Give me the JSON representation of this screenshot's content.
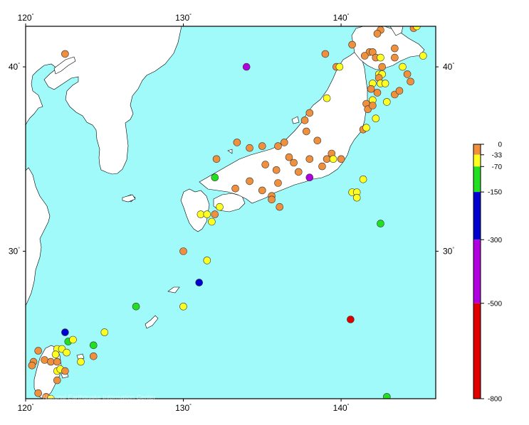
{
  "map": {
    "lon_range": [
      120,
      146
    ],
    "lat_range": [
      22,
      42.2
    ],
    "lon_ticks": [
      {
        "value": 120,
        "label": "120"
      },
      {
        "value": 130,
        "label": "130"
      },
      {
        "value": 140,
        "label": "140"
      }
    ],
    "lat_ticks": [
      {
        "value": 40,
        "label": "40"
      },
      {
        "value": 30,
        "label": "30"
      }
    ],
    "degree_symbol": "°",
    "ocean_color": "#a0fafa",
    "land_color": "#ffffff",
    "credit_text": "National Earthquake Information Center"
  },
  "depth_scale": {
    "range": [
      0,
      800
    ],
    "labels": [
      "0",
      "-33",
      "-70",
      "-150",
      "-300",
      "-500",
      "-800"
    ],
    "bands": [
      {
        "from": 0,
        "to": 33,
        "color": "#f0903c"
      },
      {
        "from": 33,
        "to": 70,
        "color": "#ffff20"
      },
      {
        "from": 70,
        "to": 150,
        "color": "#20e020"
      },
      {
        "from": 150,
        "to": 300,
        "color": "#0000d0"
      },
      {
        "from": 300,
        "to": 500,
        "color": "#b000e0"
      },
      {
        "from": 500,
        "to": 800,
        "color": "#e00000"
      }
    ]
  },
  "earthquakes": [
    {
      "lon": 122.5,
      "lat": 40.7,
      "c": "#f0903c"
    },
    {
      "lon": 134.0,
      "lat": 40.0,
      "c": "#b000e0"
    },
    {
      "lon": 133.4,
      "lat": 35.9,
      "c": "#f0903c"
    },
    {
      "lon": 134.2,
      "lat": 35.6,
      "c": "#f0903c"
    },
    {
      "lon": 135.0,
      "lat": 35.7,
      "c": "#f0903c"
    },
    {
      "lon": 136.0,
      "lat": 35.7,
      "c": "#f0903c"
    },
    {
      "lon": 136.4,
      "lat": 35.9,
      "c": "#f0903c"
    },
    {
      "lon": 137.8,
      "lat": 36.5,
      "c": "#f0903c"
    },
    {
      "lon": 137.7,
      "lat": 37.1,
      "c": "#f0903c"
    },
    {
      "lon": 138.5,
      "lat": 36.0,
      "c": "#f0903c"
    },
    {
      "lon": 139.1,
      "lat": 38.3,
      "c": "#ffff20"
    },
    {
      "lon": 139.0,
      "lat": 40.7,
      "c": "#f0903c"
    },
    {
      "lon": 139.7,
      "lat": 40.0,
      "c": "#f0903c"
    },
    {
      "lon": 139.9,
      "lat": 40.0,
      "c": "#ffff20"
    },
    {
      "lon": 140.7,
      "lat": 41.2,
      "c": "#f0903c"
    },
    {
      "lon": 141.8,
      "lat": 40.8,
      "c": "#f0903c"
    },
    {
      "lon": 142.0,
      "lat": 40.8,
      "c": "#f0903c"
    },
    {
      "lon": 142.5,
      "lat": 42.0,
      "c": "#f0903c"
    },
    {
      "lon": 142.3,
      "lat": 41.8,
      "c": "#f0903c"
    },
    {
      "lon": 144.6,
      "lat": 42.1,
      "c": "#f0903c"
    },
    {
      "lon": 144.8,
      "lat": 42.2,
      "c": "#ffff20"
    },
    {
      "lon": 143.4,
      "lat": 41.0,
      "c": "#f0903c"
    },
    {
      "lon": 142.2,
      "lat": 40.5,
      "c": "#f0903c"
    },
    {
      "lon": 142.5,
      "lat": 40.5,
      "c": "#ffff20"
    },
    {
      "lon": 143.4,
      "lat": 40.5,
      "c": "#f0903c"
    },
    {
      "lon": 145.2,
      "lat": 40.6,
      "c": "#ffff20"
    },
    {
      "lon": 141.5,
      "lat": 40.6,
      "c": "#f0903c"
    },
    {
      "lon": 142.6,
      "lat": 40.0,
      "c": "#f0903c"
    },
    {
      "lon": 142.4,
      "lat": 39.6,
      "c": "#ffff20"
    },
    {
      "lon": 142.6,
      "lat": 39.6,
      "c": "#ffff20"
    },
    {
      "lon": 142.4,
      "lat": 39.4,
      "c": "#f0903c"
    },
    {
      "lon": 143.9,
      "lat": 40.0,
      "c": "#ffff20"
    },
    {
      "lon": 144.2,
      "lat": 39.6,
      "c": "#f0903c"
    },
    {
      "lon": 144.4,
      "lat": 39.2,
      "c": "#f0903c"
    },
    {
      "lon": 142.0,
      "lat": 39.1,
      "c": "#ffff20"
    },
    {
      "lon": 142.5,
      "lat": 39.1,
      "c": "#ffff20"
    },
    {
      "lon": 142.8,
      "lat": 39.1,
      "c": "#ffff20"
    },
    {
      "lon": 141.9,
      "lat": 38.8,
      "c": "#f0903c"
    },
    {
      "lon": 142.3,
      "lat": 38.6,
      "c": "#f0903c"
    },
    {
      "lon": 141.6,
      "lat": 38.0,
      "c": "#f0903c"
    },
    {
      "lon": 142.0,
      "lat": 38.2,
      "c": "#ffff20"
    },
    {
      "lon": 142.9,
      "lat": 38.1,
      "c": "#ffff20"
    },
    {
      "lon": 143.4,
      "lat": 38.5,
      "c": "#f0903c"
    },
    {
      "lon": 143.7,
      "lat": 38.7,
      "c": "#f0903c"
    },
    {
      "lon": 141.7,
      "lat": 37.7,
      "c": "#f0903c"
    },
    {
      "lon": 142.0,
      "lat": 37.9,
      "c": "#f0903c"
    },
    {
      "lon": 142.2,
      "lat": 37.2,
      "c": "#ffff20"
    },
    {
      "lon": 141.4,
      "lat": 36.6,
      "c": "#f0903c"
    },
    {
      "lon": 141.6,
      "lat": 36.7,
      "c": "#ffff20"
    },
    {
      "lon": 138.0,
      "lat": 37.5,
      "c": "#f0903c"
    },
    {
      "lon": 139.1,
      "lat": 35.0,
      "c": "#f0903c"
    },
    {
      "lon": 139.4,
      "lat": 35.3,
      "c": "#f0903c"
    },
    {
      "lon": 139.5,
      "lat": 35.0,
      "c": "#ffff20"
    },
    {
      "lon": 140.0,
      "lat": 35.0,
      "c": "#f0903c"
    },
    {
      "lon": 138.0,
      "lat": 35.0,
      "c": "#f0903c"
    },
    {
      "lon": 137.0,
      "lat": 34.8,
      "c": "#f0903c"
    },
    {
      "lon": 136.7,
      "lat": 35.1,
      "c": "#f0903c"
    },
    {
      "lon": 138.8,
      "lat": 34.6,
      "c": "#f0903c"
    },
    {
      "lon": 137.3,
      "lat": 34.3,
      "c": "#f0903c"
    },
    {
      "lon": 138.0,
      "lat": 34.0,
      "c": "#b000e0"
    },
    {
      "lon": 135.2,
      "lat": 34.7,
      "c": "#f0903c"
    },
    {
      "lon": 135.9,
      "lat": 34.4,
      "c": "#f0903c"
    },
    {
      "lon": 132.0,
      "lat": 34.0,
      "c": "#20e020"
    },
    {
      "lon": 132.1,
      "lat": 35.0,
      "c": "#f0903c"
    },
    {
      "lon": 133.3,
      "lat": 33.4,
      "c": "#f0903c"
    },
    {
      "lon": 134.2,
      "lat": 33.8,
      "c": "#f0903c"
    },
    {
      "lon": 135.0,
      "lat": 33.3,
      "c": "#f0903c"
    },
    {
      "lon": 135.6,
      "lat": 33.0,
      "c": "#f0903c"
    },
    {
      "lon": 135.6,
      "lat": 32.8,
      "c": "#f0903c"
    },
    {
      "lon": 136.0,
      "lat": 33.7,
      "c": "#f0903c"
    },
    {
      "lon": 136.1,
      "lat": 32.4,
      "c": "#f0903c"
    },
    {
      "lon": 132.3,
      "lat": 32.4,
      "c": "#ffff20"
    },
    {
      "lon": 131.1,
      "lat": 32.0,
      "c": "#ffff20"
    },
    {
      "lon": 131.5,
      "lat": 32.0,
      "c": "#ffff20"
    },
    {
      "lon": 132.0,
      "lat": 32.0,
      "c": "#f0903c"
    },
    {
      "lon": 131.8,
      "lat": 31.6,
      "c": "#ffff20"
    },
    {
      "lon": 141.4,
      "lat": 33.9,
      "c": "#ffff20"
    },
    {
      "lon": 140.7,
      "lat": 33.2,
      "c": "#ffff20"
    },
    {
      "lon": 141.0,
      "lat": 33.2,
      "c": "#ffff20"
    },
    {
      "lon": 141.0,
      "lat": 32.9,
      "c": "#ffff20"
    },
    {
      "lon": 142.5,
      "lat": 31.5,
      "c": "#20e020"
    },
    {
      "lon": 130.0,
      "lat": 30.0,
      "c": "#f0903c"
    },
    {
      "lon": 131.5,
      "lat": 29.5,
      "c": "#ffff20"
    },
    {
      "lon": 131.0,
      "lat": 28.3,
      "c": "#0000d0"
    },
    {
      "lon": 127.0,
      "lat": 27.0,
      "c": "#20e020"
    },
    {
      "lon": 130.0,
      "lat": 27.0,
      "c": "#ffff20"
    },
    {
      "lon": 140.6,
      "lat": 26.3,
      "c": "#e00000"
    },
    {
      "lon": 122.5,
      "lat": 25.6,
      "c": "#0000d0"
    },
    {
      "lon": 122.7,
      "lat": 25.1,
      "c": "#20e020"
    },
    {
      "lon": 123.0,
      "lat": 25.2,
      "c": "#ffff20"
    },
    {
      "lon": 125.0,
      "lat": 25.6,
      "c": "#ffff20"
    },
    {
      "lon": 124.3,
      "lat": 24.9,
      "c": "#20e020"
    },
    {
      "lon": 122.0,
      "lat": 24.7,
      "c": "#ffff20"
    },
    {
      "lon": 122.3,
      "lat": 24.7,
      "c": "#ffff20"
    },
    {
      "lon": 122.6,
      "lat": 24.5,
      "c": "#ffff20"
    },
    {
      "lon": 121.9,
      "lat": 24.4,
      "c": "#ffff20"
    },
    {
      "lon": 124.3,
      "lat": 24.3,
      "c": "#f0903c"
    },
    {
      "lon": 121.2,
      "lat": 24.1,
      "c": "#f0903c"
    },
    {
      "lon": 121.6,
      "lat": 24.0,
      "c": "#f0903c"
    },
    {
      "lon": 122.0,
      "lat": 24.0,
      "c": "#f0903c"
    },
    {
      "lon": 123.5,
      "lat": 24.0,
      "c": "#ffff20"
    },
    {
      "lon": 120.5,
      "lat": 24.0,
      "c": "#f0903c"
    },
    {
      "lon": 120.8,
      "lat": 24.6,
      "c": "#f0903c"
    },
    {
      "lon": 120.4,
      "lat": 23.8,
      "c": "#f0903c"
    },
    {
      "lon": 122.0,
      "lat": 23.5,
      "c": "#ffff20"
    },
    {
      "lon": 122.2,
      "lat": 23.6,
      "c": "#ffff20"
    },
    {
      "lon": 122.5,
      "lat": 23.5,
      "c": "#f0903c"
    },
    {
      "lon": 122.0,
      "lat": 23.0,
      "c": "#f0903c"
    },
    {
      "lon": 120.8,
      "lat": 22.3,
      "c": "#f0903c"
    },
    {
      "lon": 121.3,
      "lat": 22.1,
      "c": "#f0903c"
    },
    {
      "lon": 121.6,
      "lat": 22.0,
      "c": "#ffff20"
    },
    {
      "lon": 142.9,
      "lat": 22.1,
      "c": "#20e020"
    }
  ]
}
